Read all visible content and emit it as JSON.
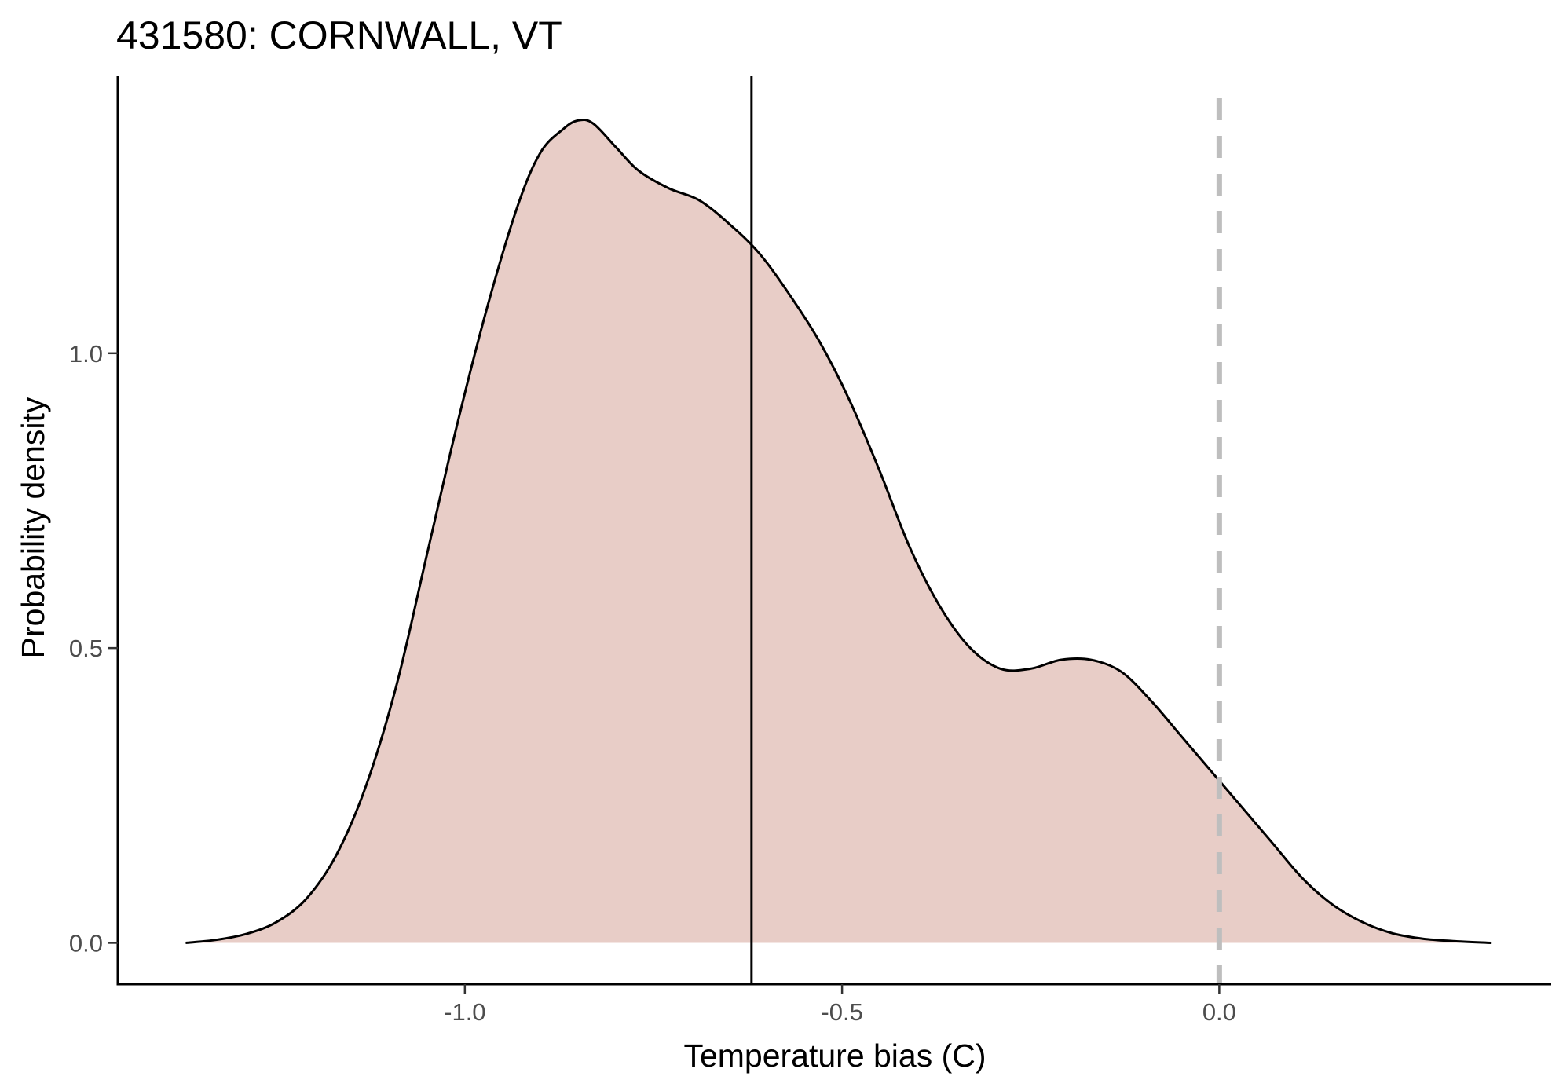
{
  "chart_data": {
    "type": "area",
    "title": "431580: CORNWALL, VT",
    "xlabel": "Temperature bias (C)",
    "ylabel": "Probability density",
    "xlim": [
      -1.46,
      0.44
    ],
    "ylim": [
      -0.07,
      1.47
    ],
    "xticks": [
      -1.0,
      -0.5,
      0.0
    ],
    "xtick_labels": [
      "-1.0",
      "-0.5",
      "0.0"
    ],
    "yticks": [
      0.0,
      0.5,
      1.0
    ],
    "ytick_labels": [
      "0.0",
      "0.5",
      "1.0"
    ],
    "grid": false,
    "legend": "none",
    "series": [
      {
        "x": [
          -1.37,
          -1.33,
          -1.29,
          -1.25,
          -1.21,
          -1.17,
          -1.13,
          -1.09,
          -1.05,
          -1.01,
          -0.97,
          -0.93,
          -0.9,
          -0.87,
          -0.85,
          -0.83,
          -0.8,
          -0.77,
          -0.73,
          -0.69,
          -0.65,
          -0.61,
          -0.57,
          -0.53,
          -0.49,
          -0.45,
          -0.41,
          -0.37,
          -0.33,
          -0.29,
          -0.25,
          -0.21,
          -0.17,
          -0.13,
          -0.09,
          -0.05,
          -0.01,
          0.03,
          0.07,
          0.11,
          0.15,
          0.19,
          0.23,
          0.27,
          0.31,
          0.36
        ],
        "y": [
          0.0,
          0.005,
          0.015,
          0.035,
          0.075,
          0.15,
          0.27,
          0.44,
          0.66,
          0.88,
          1.08,
          1.25,
          1.34,
          1.38,
          1.395,
          1.39,
          1.35,
          1.31,
          1.28,
          1.26,
          1.22,
          1.17,
          1.1,
          1.02,
          0.92,
          0.8,
          0.67,
          0.57,
          0.5,
          0.465,
          0.465,
          0.48,
          0.48,
          0.46,
          0.41,
          0.35,
          0.29,
          0.23,
          0.17,
          0.11,
          0.065,
          0.035,
          0.016,
          0.007,
          0.003,
          0.0
        ],
        "fill": "#e8cdc7",
        "stroke": "#000000"
      }
    ],
    "vlines": [
      {
        "x": -0.62,
        "style": "solid",
        "color": "#000000"
      },
      {
        "x": 0.0,
        "style": "dashed",
        "color": "#bebebe"
      }
    ]
  }
}
